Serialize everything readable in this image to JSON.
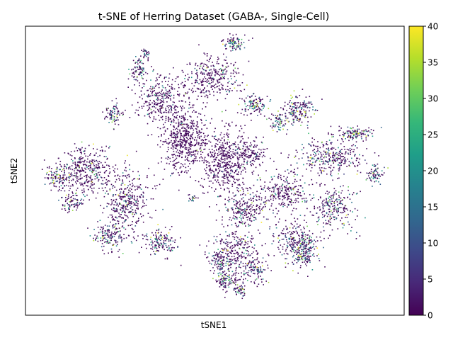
{
  "chart_data": {
    "type": "scatter",
    "title": "t-SNE of Herring Dataset (GABA-, Single-Cell)",
    "xlabel": "tSNE1",
    "ylabel": "tSNE2",
    "x_ticks_visible": false,
    "y_ticks_visible": false,
    "grid": false,
    "colorbar": {
      "colormap": "viridis",
      "range": [
        0,
        40
      ],
      "ticks": [
        0,
        5,
        10,
        15,
        20,
        25,
        30,
        35,
        40
      ],
      "location": "right"
    },
    "point_color_description": "Most cells have values near 0 (dark purple); peripheral clusters show scattered values of about 10-40.",
    "colors": {
      "viridis_stops": [
        "#440154",
        "#482878",
        "#3e4989",
        "#31688e",
        "#26828e",
        "#1f9e89",
        "#35b779",
        "#6ece58",
        "#b5de2b",
        "#fde725"
      ]
    }
  }
}
